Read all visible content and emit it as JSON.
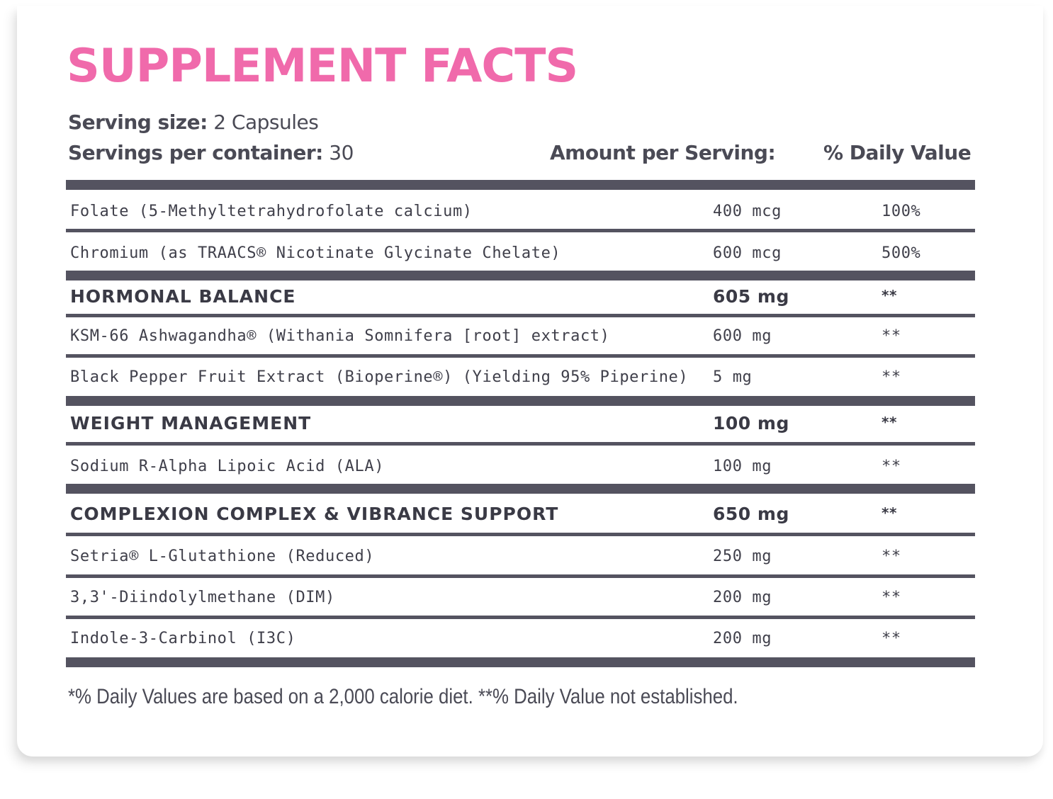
{
  "title": "SUPPLEMENT FACTS",
  "serving_size": {
    "label": "Serving size:",
    "value": "2 Capsules"
  },
  "servings_per_container": {
    "label": "Servings per container:",
    "value": "30"
  },
  "columns": {
    "amount": "Amount per Serving:",
    "daily_value": "% Daily Value"
  },
  "rows": [
    {
      "type": "item",
      "name": "Folate (5-Methyltetrahydrofolate calcium)",
      "amount": "400 mcg",
      "dv": "100%"
    },
    {
      "type": "item",
      "name": "Chromium (as TRAACS® Nicotinate Glycinate Chelate)",
      "amount": "600 mcg",
      "dv": "500%"
    },
    {
      "type": "group",
      "name": "HORMONAL BALANCE",
      "amount": "605 mg",
      "dv": "**"
    },
    {
      "type": "item",
      "name": "KSM-66 Ashwagandha® (Withania Somnifera [root] extract)",
      "amount": "600 mg",
      "dv": "**"
    },
    {
      "type": "item",
      "name": "Black Pepper Fruit Extract (Bioperine®) (Yielding 95% Piperine)",
      "amount": "5 mg",
      "dv": "**"
    },
    {
      "type": "group",
      "name": "WEIGHT MANAGEMENT",
      "amount": "100 mg",
      "dv": "**"
    },
    {
      "type": "item",
      "name": "Sodium R-Alpha Lipoic Acid (ALA)",
      "amount": "100 mg",
      "dv": "**"
    },
    {
      "type": "group",
      "name": "COMPLEXION COMPLEX & VIBRANCE SUPPORT",
      "amount": "650 mg",
      "dv": "**"
    },
    {
      "type": "item",
      "name": "Setria® L-Glutathione (Reduced)",
      "amount": "250 mg",
      "dv": "**"
    },
    {
      "type": "item",
      "name": "3,3'-Diindolylmethane (DIM)",
      "amount": "200 mg",
      "dv": "**"
    },
    {
      "type": "item",
      "name": "Indole-3-Carbinol (I3C)",
      "amount": "200 mg",
      "dv": "**"
    }
  ],
  "footnote": "*% Daily Values are based on a 2,000 calorie diet. **% Daily Value not established.",
  "colors": {
    "title": "#f06aab",
    "bars": "#545360",
    "text": "#4a4a55"
  }
}
